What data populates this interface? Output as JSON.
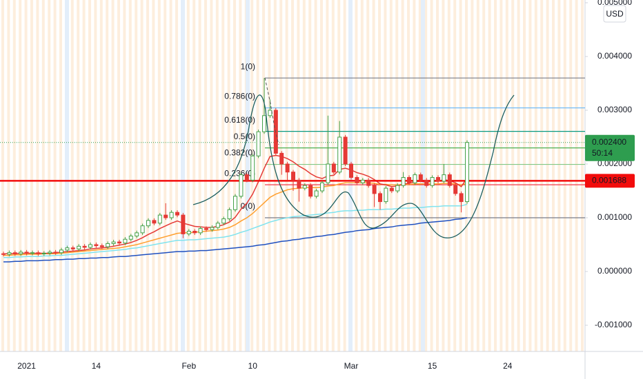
{
  "chart_data": {
    "type": "candlestick",
    "currency": "USD",
    "categories": [
      null,
      null,
      null,
      null,
      "2021",
      null,
      null,
      null,
      null,
      null,
      null,
      null,
      null,
      null,
      null,
      null,
      "14",
      null,
      null,
      null,
      null,
      null,
      null,
      null,
      null,
      null,
      null,
      null,
      null,
      null,
      null,
      null,
      "Feb",
      null,
      null,
      null,
      null,
      null,
      null,
      null,
      null,
      null,
      null,
      "10",
      null,
      null,
      null,
      null,
      null,
      null,
      null,
      null,
      null,
      null,
      null,
      null,
      null,
      null,
      null,
      null,
      "Mar",
      null,
      null,
      null,
      null,
      null,
      null,
      null,
      null,
      null,
      null,
      null,
      null,
      null,
      "15",
      null,
      null,
      null,
      null,
      null,
      null,
      null,
      null,
      null,
      null,
      null,
      null,
      "24",
      null,
      null,
      null,
      null,
      null,
      null,
      null,
      null,
      null,
      null,
      null,
      null
    ],
    "open": [
      0.00033,
      0.00032,
      0.00035,
      0.00033,
      0.00036,
      0.00034,
      0.00035,
      0.00033,
      0.00034,
      0.00036,
      0.00035,
      0.0004,
      0.00044,
      0.00042,
      0.00047,
      0.00045,
      0.0005,
      0.00048,
      0.00046,
      0.00052,
      0.00055,
      0.00053,
      0.0006,
      0.00066,
      0.00072,
      0.00085,
      0.00095,
      0.0009,
      0.00105,
      0.001,
      0.0011,
      0.00105,
      0.0007,
      0.00075,
      0.00072,
      0.0008,
      0.00078,
      0.00082,
      0.0009,
      0.00098,
      0.00115,
      0.0014,
      0.0018,
      0.0017,
      0.00215,
      0.0026,
      0.0029,
      0.003,
      0.0022,
      0.002,
      0.00185,
      0.0017,
      0.00155,
      0.0016,
      0.0014,
      0.0015,
      0.00165,
      0.002,
      0.00185,
      0.0025,
      0.002,
      0.00175,
      0.00165,
      0.0017,
      0.0016,
      0.00145,
      0.0013,
      0.00155,
      0.0015,
      0.0016,
      0.00175,
      0.00165,
      0.0018,
      0.0017,
      0.0016,
      0.00175,
      0.00168,
      0.0018,
      0.0016,
      0.00145,
      0.0013,
      null,
      null,
      null,
      null,
      null,
      null,
      null,
      null,
      null,
      null,
      null,
      null,
      null,
      null,
      null,
      null,
      null,
      null,
      null
    ],
    "high": [
      0.00037,
      0.00039,
      0.00039,
      0.0004,
      0.0004,
      0.00039,
      0.00039,
      0.00038,
      0.0004,
      0.0004,
      0.00044,
      0.00048,
      0.00048,
      0.00051,
      0.00051,
      0.00054,
      0.00054,
      0.00052,
      0.00056,
      0.00059,
      0.00059,
      0.00064,
      0.0007,
      0.00076,
      0.00089,
      0.00099,
      0.00099,
      0.00109,
      0.00127,
      0.00114,
      0.00114,
      0.00109,
      0.00079,
      0.00079,
      0.00084,
      0.00084,
      0.00086,
      0.00094,
      0.00102,
      0.00119,
      0.00144,
      0.00184,
      0.00184,
      0.00219,
      0.00264,
      0.0036,
      0.0032,
      0.00304,
      0.00224,
      0.00204,
      0.00189,
      0.00174,
      0.00164,
      0.00164,
      0.00154,
      0.00169,
      0.0029,
      0.00204,
      0.0028,
      0.00254,
      0.00204,
      0.00179,
      0.00174,
      0.00174,
      0.00164,
      0.00149,
      0.00159,
      0.00159,
      0.00164,
      0.00185,
      0.00179,
      0.00184,
      0.00184,
      0.00174,
      0.00179,
      0.00179,
      0.002,
      0.00184,
      0.00164,
      0.00149,
      0.00244,
      null,
      null,
      null,
      null,
      null,
      null,
      null,
      null,
      null,
      null,
      null,
      null,
      null,
      null,
      null,
      null,
      null,
      null,
      null
    ],
    "low": [
      0.00028,
      0.00028,
      0.00029,
      0.00029,
      0.0003,
      0.0003,
      0.00029,
      0.00029,
      0.0003,
      0.00031,
      0.00031,
      0.00036,
      0.00038,
      0.00038,
      0.00041,
      0.00041,
      0.00044,
      0.00042,
      0.00042,
      0.00048,
      0.00049,
      0.00049,
      0.00056,
      0.00062,
      0.00068,
      0.00081,
      0.00086,
      0.00086,
      0.00096,
      0.00096,
      0.00101,
      0.00062,
      0.00066,
      0.00068,
      0.00068,
      0.00074,
      0.00074,
      0.00078,
      0.00086,
      0.00094,
      0.00111,
      0.00136,
      0.00166,
      0.00166,
      0.00211,
      0.00256,
      0.00286,
      0.00216,
      0.0018,
      0.0017,
      0.0015,
      0.0013,
      0.00151,
      0.00136,
      0.00136,
      0.00146,
      0.00161,
      0.00181,
      0.00181,
      0.00196,
      0.00171,
      0.00161,
      0.00161,
      0.00156,
      0.0012,
      0.00115,
      0.00126,
      0.00146,
      0.00146,
      0.00156,
      0.00161,
      0.00161,
      0.00166,
      0.00156,
      0.00156,
      0.00164,
      0.00164,
      0.00156,
      0.00141,
      0.0011,
      0.00126,
      null,
      null,
      null,
      null,
      null,
      null,
      null,
      null,
      null,
      null,
      null,
      null,
      null,
      null,
      null,
      null,
      null,
      null,
      null
    ],
    "close": [
      0.00032,
      0.00035,
      0.00033,
      0.00036,
      0.00034,
      0.00035,
      0.00033,
      0.00034,
      0.00036,
      0.00035,
      0.0004,
      0.00044,
      0.00042,
      0.00047,
      0.00045,
      0.0005,
      0.00048,
      0.00046,
      0.00052,
      0.00055,
      0.00053,
      0.0006,
      0.00066,
      0.00072,
      0.00085,
      0.00095,
      0.0009,
      0.00105,
      0.001,
      0.0011,
      0.00105,
      0.0007,
      0.00075,
      0.00072,
      0.0008,
      0.00078,
      0.00082,
      0.0009,
      0.00098,
      0.00115,
      0.0014,
      0.0018,
      0.0017,
      0.00215,
      0.0026,
      0.0029,
      0.003,
      0.0022,
      0.002,
      0.00185,
      0.0017,
      0.00155,
      0.0016,
      0.0014,
      0.0015,
      0.00165,
      0.002,
      0.00185,
      0.0025,
      0.002,
      0.00175,
      0.00165,
      0.0017,
      0.0016,
      0.00145,
      0.0013,
      0.00155,
      0.0015,
      0.0016,
      0.00175,
      0.00165,
      0.0018,
      0.0017,
      0.0016,
      0.00175,
      0.00168,
      0.0018,
      0.0016,
      0.00145,
      0.0013,
      0.0024,
      null,
      null,
      null,
      null,
      null,
      null,
      null,
      null,
      null,
      null,
      null,
      null,
      null,
      null,
      null,
      null,
      null,
      null,
      null
    ],
    "up_color": "#43a047",
    "down_color": "#e53935",
    "series": [
      {
        "color": "#1e4fbf",
        "values": [
          0.00018,
          0.00018,
          0.00019,
          0.00019,
          0.0002,
          0.0002,
          0.0002,
          0.00021,
          0.00021,
          0.00022,
          0.00022,
          0.00023,
          0.00023,
          0.00024,
          0.00024,
          0.00025,
          0.00025,
          0.00026,
          0.00026,
          0.00027,
          0.00028,
          0.00028,
          0.00029,
          0.0003,
          0.00031,
          0.00032,
          0.00033,
          0.00034,
          0.00035,
          0.00036,
          0.00037,
          0.00037,
          0.00038,
          0.00038,
          0.00039,
          0.00039,
          0.0004,
          0.00041,
          0.00042,
          0.00043,
          0.00044,
          0.00045,
          0.00046,
          0.00047,
          0.00049,
          0.0005,
          0.00052,
          0.00054,
          0.00056,
          0.00057,
          0.00059,
          0.0006,
          0.00062,
          0.00063,
          0.00065,
          0.00066,
          0.00068,
          0.00069,
          0.00071,
          0.00073,
          0.00074,
          0.00076,
          0.00077,
          0.00078,
          0.0008,
          0.00081,
          0.00082,
          0.00083,
          0.00085,
          0.00086,
          0.00087,
          0.00088,
          0.0009,
          0.00091,
          0.00092,
          0.00093,
          0.00094,
          0.00095,
          0.00097,
          0.00098,
          0.001,
          null,
          null,
          null,
          null,
          null,
          null,
          null,
          null,
          null,
          null,
          null,
          null,
          null,
          null,
          null,
          null,
          null,
          null,
          null
        ]
      },
      {
        "color": "#7fe3ee",
        "values": [
          0.00026,
          0.00026,
          0.00027,
          0.00027,
          0.00028,
          0.00028,
          0.00028,
          0.00029,
          0.00029,
          0.0003,
          0.0003,
          0.00031,
          0.00032,
          0.00033,
          0.00034,
          0.00035,
          0.00036,
          0.00037,
          0.00038,
          0.00039,
          0.0004,
          0.00041,
          0.00043,
          0.00044,
          0.00046,
          0.00048,
          0.0005,
          0.00052,
          0.00054,
          0.00056,
          0.00058,
          0.00058,
          0.00059,
          0.00059,
          0.0006,
          0.00061,
          0.00062,
          0.00063,
          0.00064,
          0.00066,
          0.00069,
          0.00073,
          0.00076,
          0.0008,
          0.00084,
          0.00088,
          0.00092,
          0.00095,
          0.00098,
          0.001,
          0.00102,
          0.00103,
          0.00104,
          0.00105,
          0.00106,
          0.00107,
          0.00109,
          0.0011,
          0.00112,
          0.00113,
          0.00113,
          0.00114,
          0.00114,
          0.00115,
          0.00115,
          0.00115,
          0.00116,
          0.00116,
          0.00117,
          0.00118,
          0.00118,
          0.00119,
          0.00119,
          0.0012,
          0.00121,
          0.00121,
          0.00122,
          0.00122,
          0.00122,
          0.00122,
          0.00125,
          null,
          null,
          null,
          null,
          null,
          null,
          null,
          null,
          null,
          null,
          null,
          null,
          null,
          null,
          null,
          null,
          null,
          null,
          null
        ]
      },
      {
        "color": "#ff9f2e",
        "values": [
          0.0003,
          0.0003,
          0.00031,
          0.00031,
          0.00032,
          0.00032,
          0.00032,
          0.00033,
          0.00033,
          0.00033,
          0.00034,
          0.00035,
          0.00036,
          0.00037,
          0.00038,
          0.00039,
          0.0004,
          0.00041,
          0.00042,
          0.00043,
          0.00044,
          0.00046,
          0.00048,
          0.0005,
          0.00053,
          0.00056,
          0.00059,
          0.00062,
          0.00065,
          0.00068,
          0.00071,
          0.00072,
          0.00072,
          0.00073,
          0.00074,
          0.00075,
          0.00076,
          0.00077,
          0.00079,
          0.00082,
          0.00087,
          0.00094,
          0.001,
          0.00108,
          0.00118,
          0.00128,
          0.00138,
          0.00144,
          0.00148,
          0.00152,
          0.00154,
          0.00155,
          0.00156,
          0.00156,
          0.00156,
          0.00157,
          0.00159,
          0.0016,
          0.00163,
          0.00165,
          0.00165,
          0.00165,
          0.00165,
          0.00165,
          0.00164,
          0.00162,
          0.00162,
          0.00161,
          0.00161,
          0.00162,
          0.00162,
          0.00163,
          0.00163,
          0.00163,
          0.00163,
          0.00163,
          0.00164,
          0.00164,
          0.00163,
          0.00161,
          0.00164,
          null,
          null,
          null,
          null,
          null,
          null,
          null,
          null,
          null,
          null,
          null,
          null,
          null,
          null,
          null,
          null,
          null,
          null,
          null
        ]
      },
      {
        "color": "#e53935",
        "values": [
          0.00033,
          0.00033,
          0.00033,
          0.00034,
          0.00034,
          0.00034,
          0.00034,
          0.00034,
          0.00034,
          0.00035,
          0.00036,
          0.00037,
          0.00038,
          0.00039,
          0.0004,
          0.00042,
          0.00043,
          0.00044,
          0.00045,
          0.00047,
          0.00049,
          0.00051,
          0.00054,
          0.00058,
          0.00063,
          0.00069,
          0.00074,
          0.0008,
          0.00085,
          0.0009,
          0.00094,
          0.0009,
          0.00087,
          0.00084,
          0.00083,
          0.00082,
          0.00082,
          0.00084,
          0.00087,
          0.00092,
          0.00101,
          0.00116,
          0.00127,
          0.00144,
          0.00167,
          0.00192,
          0.00214,
          0.00216,
          0.00214,
          0.0021,
          0.00204,
          0.00196,
          0.0019,
          0.00182,
          0.00176,
          0.00173,
          0.00178,
          0.00179,
          0.0019,
          0.00192,
          0.00189,
          0.00184,
          0.00181,
          0.00177,
          0.00171,
          0.00163,
          0.00161,
          0.00158,
          0.00159,
          0.00163,
          0.00164,
          0.00167,
          0.00168,
          0.00166,
          0.00168,
          0.00168,
          0.00171,
          0.00169,
          0.00165,
          0.00158,
          0.00174,
          null,
          null,
          null,
          null,
          null,
          null,
          null,
          null,
          null,
          null,
          null,
          null,
          null,
          null,
          null,
          null,
          null,
          null,
          null
        ]
      }
    ],
    "ylim": [
      -0.001487,
      0.005051
    ],
    "yticks": [
      {
        "value": -0.001,
        "label": "-0.001000"
      },
      {
        "value": 0,
        "label": "0.000000"
      },
      {
        "value": 0.001,
        "label": "0.001000"
      },
      {
        "value": 0.002,
        "label": "0.002000"
      },
      {
        "value": 0.003,
        "label": "0.003000"
      },
      {
        "value": 0.004,
        "label": "0.004000"
      },
      {
        "value": 0.005,
        "label": "0.005000"
      }
    ],
    "grid": false,
    "fib_levels": [
      {
        "label": "1(0)",
        "value": 0.0036,
        "color": "#787b86"
      },
      {
        "label": "0.786(0)",
        "value": 0.003044,
        "color": "#64b5f6"
      },
      {
        "label": "0.618(0)",
        "value": 0.002607,
        "color": "#089981"
      },
      {
        "label": "0.5(0)",
        "value": 0.0023,
        "color": "#4caf50"
      },
      {
        "label": "0.382(0)",
        "value": 0.001993,
        "color": "#81c784"
      },
      {
        "label": "0.236(0)",
        "value": 0.001614,
        "color": "#f23645"
      },
      {
        "label": "0(0)",
        "value": 0.001,
        "color": "#787b86"
      }
    ],
    "last_price": {
      "value": 0.0024,
      "label": "0.002400",
      "countdown": "50:14",
      "color": "#2e9d4f"
    },
    "alert_line": {
      "value": 0.001688,
      "label": "0.001688",
      "color": "#f20c0c"
    }
  }
}
